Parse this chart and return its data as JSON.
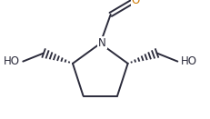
{
  "bg_color": "#ffffff",
  "line_color": "#2b2b3b",
  "atom_colors": {
    "N": "#2b2b3b",
    "O": "#cc7700",
    "C": "#2b2b3b"
  },
  "figsize": [
    2.32,
    1.31
  ],
  "dpi": 100,
  "lw": 1.4
}
